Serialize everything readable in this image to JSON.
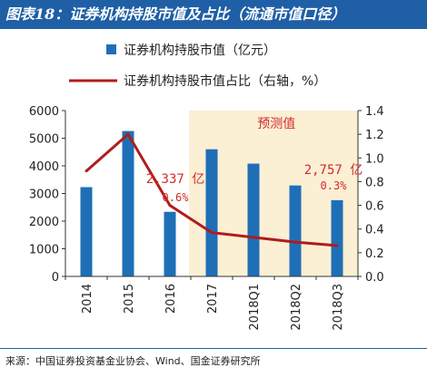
{
  "title": "图表18：证券机构持股市值及占比（流通市值口径）",
  "source": "来源：中国证券投资基金业协会、Wind、国金证券研究所",
  "colors": {
    "title_bg": "#1f5fa6",
    "bar": "#1f6fb7",
    "line": "#b01c1c",
    "forecast_bg": "#fbefd4",
    "annotation": "#d22b2b"
  },
  "chart_data": {
    "type": "bar+line",
    "categories": [
      "2014",
      "2015",
      "2016",
      "2017",
      "2018Q1",
      "2018Q2",
      "2018Q3"
    ],
    "series": [
      {
        "name": "证券机构持股市值（亿元）",
        "type": "bar",
        "axis": "left",
        "values": [
          3230,
          5260,
          2337,
          4600,
          4080,
          3290,
          2757
        ]
      },
      {
        "name": "证券机构持股市值占比（右轴，%）",
        "type": "line",
        "axis": "right",
        "values": [
          0.89,
          1.2,
          0.6,
          0.37,
          0.33,
          0.29,
          0.26
        ]
      }
    ],
    "y_left": {
      "min": 0,
      "max": 6000,
      "ticks": [
        "0",
        "1000",
        "2000",
        "3000",
        "4000",
        "5000",
        "6000"
      ]
    },
    "y_right": {
      "min": 0,
      "max": 1.4,
      "ticks": [
        "0.0",
        "0.2",
        "0.4",
        "0.6",
        "0.8",
        "1.0",
        "1.2",
        "1.4"
      ]
    },
    "forecast_label": "预测值",
    "forecast_from_category": "2017",
    "annotations": [
      {
        "category": "2016",
        "lines": [
          "2,337 亿",
          "0.6%"
        ]
      },
      {
        "category": "2018Q3",
        "lines": [
          "2,757 亿",
          "0.3%"
        ]
      }
    ],
    "grid": false,
    "legend_position": "top"
  }
}
